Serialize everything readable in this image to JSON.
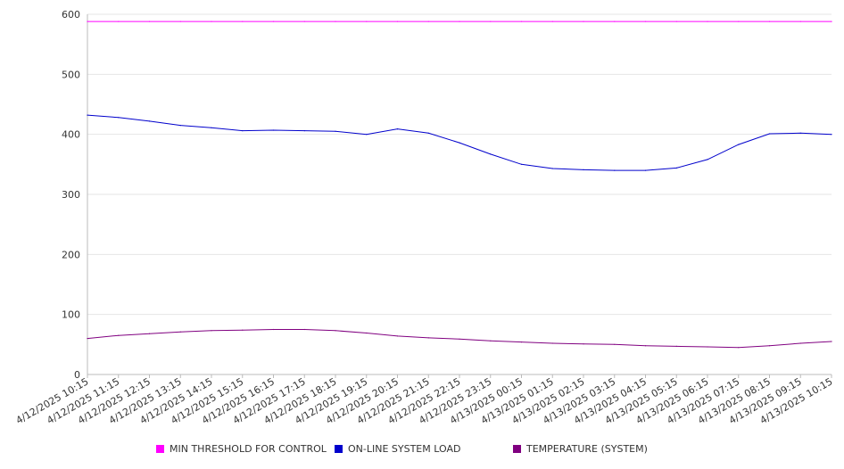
{
  "chart_data": {
    "type": "line",
    "title": "",
    "xlabel": "",
    "ylabel": "",
    "ylim": [
      0,
      600
    ],
    "yticks": [
      0,
      100,
      200,
      300,
      400,
      500,
      600
    ],
    "grid": true,
    "legend_position": "bottom",
    "categories": [
      "4/12/2025 10:15",
      "4/12/2025 11:15",
      "4/12/2025 12:15",
      "4/12/2025 13:15",
      "4/12/2025 14:15",
      "4/12/2025 15:15",
      "4/12/2025 16:15",
      "4/12/2025 17:15",
      "4/12/2025 18:15",
      "4/12/2025 19:15",
      "4/12/2025 20:15",
      "4/12/2025 21:15",
      "4/12/2025 22:15",
      "4/12/2025 23:15",
      "4/13/2025 00:15",
      "4/13/2025 01:15",
      "4/13/2025 02:15",
      "4/13/2025 03:15",
      "4/13/2025 04:15",
      "4/13/2025 05:15",
      "4/13/2025 06:15",
      "4/13/2025 07:15",
      "4/13/2025 08:15",
      "4/13/2025 09:15",
      "4/13/2025 10:15"
    ],
    "series": [
      {
        "name": "MIN THRESHOLD FOR CONTROL",
        "color": "#ff00ff",
        "values": [
          588,
          588,
          588,
          588,
          588,
          588,
          588,
          588,
          588,
          588,
          588,
          588,
          588,
          588,
          588,
          588,
          588,
          588,
          588,
          588,
          588,
          588,
          588,
          588,
          588
        ]
      },
      {
        "name": "ON-LINE SYSTEM LOAD",
        "color": "#0000cc",
        "values": [
          432,
          428,
          422,
          415,
          411,
          406,
          407,
          406,
          405,
          400,
          409,
          402,
          386,
          367,
          350,
          343,
          341,
          340,
          340,
          344,
          358,
          383,
          401,
          402,
          400
        ]
      },
      {
        "name": "TEMPERATURE (SYSTEM)",
        "color": "#800080",
        "values": [
          60,
          65,
          68,
          71,
          73,
          74,
          75,
          75,
          73,
          69,
          64,
          61,
          59,
          56,
          54,
          52,
          51,
          50,
          48,
          47,
          46,
          45,
          48,
          52,
          55
        ]
      }
    ]
  }
}
